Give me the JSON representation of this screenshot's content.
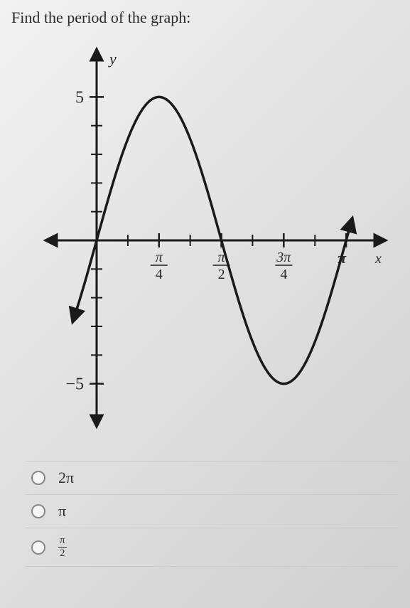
{
  "prompt": "Find the period of the graph:",
  "graph": {
    "type": "line",
    "xlim": [
      -0.4,
      3.4
    ],
    "ylim": [
      -6.2,
      6.2
    ],
    "xticks_major": [
      {
        "pos": 0.785,
        "label_num": "π",
        "label_den": "4"
      },
      {
        "pos": 1.571,
        "label_num": "π",
        "label_den": "2"
      },
      {
        "pos": 2.356,
        "label_num": "3π",
        "label_den": "4"
      },
      {
        "pos": 3.142,
        "label": "π"
      }
    ],
    "xticks_minor": [
      0.393,
      1.178,
      1.963,
      2.749
    ],
    "yticks_major": [
      {
        "pos": 5,
        "label": "5"
      },
      {
        "pos": -5,
        "label": "−5"
      }
    ],
    "yticks_minor": [
      1,
      2,
      3,
      4,
      -1,
      -2,
      -3,
      -4
    ],
    "y_axis_label": "y",
    "x_axis_label": "x",
    "curve": {
      "amplitude": 5.0,
      "period": 3.1416,
      "phase_shift": 0.0,
      "color": "#1a1a1a",
      "width": 3.5
    },
    "axis_color": "#1a1a1a",
    "axis_width": 3,
    "tick_length": 8,
    "background_color": "transparent"
  },
  "options": [
    {
      "label_html": "2π"
    },
    {
      "label_html": "π"
    },
    {
      "label_frac": {
        "n": "π",
        "d": "2"
      }
    }
  ]
}
